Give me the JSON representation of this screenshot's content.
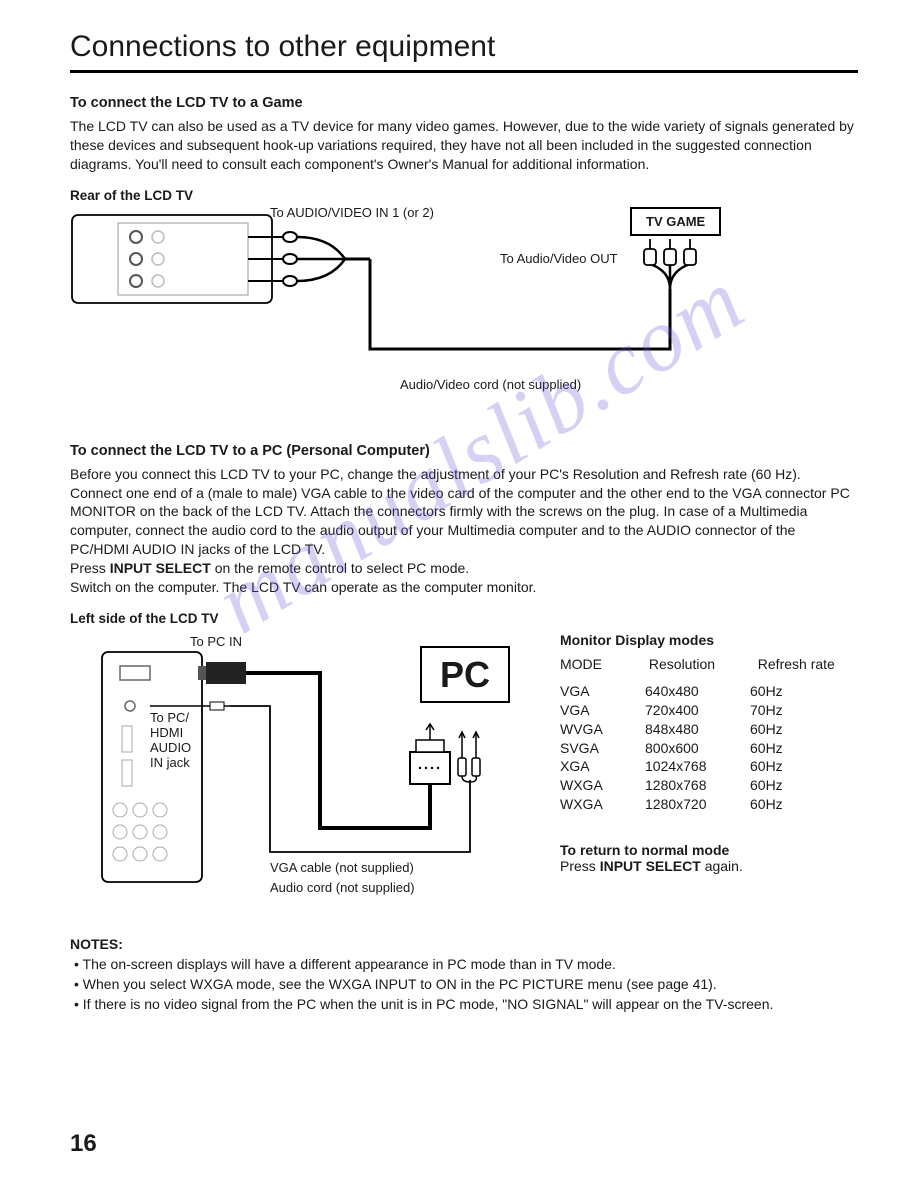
{
  "page": {
    "title": "Connections to other equipment",
    "number": "16",
    "watermark": "manualslib.com"
  },
  "game_section": {
    "heading": "To connect the LCD TV to a Game",
    "body": "The LCD TV can also be used as a TV device for many video games. However, due to the wide variety of signals generated by these devices and subsequent hook-up variations required, they have not all been included in the suggested connection diagrams. You'll need to consult each component's Owner's Manual for additional information.",
    "rear_label": "Rear of the LCD TV",
    "to_av_in": "To AUDIO/VIDEO IN 1 (or 2)",
    "tv_game_box": "TV GAME",
    "to_av_out": "To Audio/Video OUT",
    "cord_caption": "Audio/Video cord (not supplied)"
  },
  "pc_section": {
    "heading": "To connect the LCD TV to a PC (Personal Computer)",
    "body_pre": "Before you connect this LCD TV to your PC, change the adjustment of your PC's Resolution and Refresh rate (60 Hz).\nConnect one end of a (male to male) VGA cable to the video card of the computer and the other end to the VGA connector PC MONITOR on the back of the LCD TV. Attach the connectors firmly with the screws on the plug. In case of a Multimedia computer, connect the audio cord to the audio output of your Multimedia computer and to the AUDIO connector of the PC/HDMI AUDIO IN jacks of the LCD TV.\nPress ",
    "input_select_bold": "INPUT SELECT",
    "body_mid": " on the remote control to select PC mode.\nSwitch on the computer. The LCD TV can operate as the computer monitor.",
    "left_label": "Left side of the LCD TV",
    "to_pc_in": "To PC IN",
    "to_pc_hdmi": "To PC/\nHDMI\nAUDIO\nIN jack",
    "pc_box": "PC",
    "vga_caption": "VGA cable (not supplied)",
    "audio_caption": "Audio cord (not supplied)"
  },
  "modes": {
    "title": "Monitor Display modes",
    "columns": [
      "MODE",
      "Resolution",
      "Refresh rate"
    ],
    "rows": [
      [
        "VGA",
        "640x480",
        "60Hz"
      ],
      [
        "VGA",
        "720x400",
        "70Hz"
      ],
      [
        "WVGA",
        "848x480",
        "60Hz"
      ],
      [
        "SVGA",
        "800x600",
        "60Hz"
      ],
      [
        "XGA",
        "1024x768",
        "60Hz"
      ],
      [
        "WXGA",
        "1280x768",
        "60Hz"
      ],
      [
        "WXGA",
        "1280x720",
        "60Hz"
      ]
    ]
  },
  "return_mode": {
    "heading": "To return to normal mode",
    "text_pre": "Press ",
    "bold": "INPUT SELECT",
    "text_post": " again."
  },
  "notes": {
    "heading": "NOTES:",
    "items": [
      "The on-screen displays will have a different appearance in PC mode than in TV mode.",
      "When you select WXGA mode, see the WXGA INPUT to ON in the PC PICTURE menu (see page 41).",
      "If there is no video signal from the PC when the unit is in PC mode, \"NO SIGNAL\" will appear on the TV-screen."
    ]
  },
  "colors": {
    "text": "#1a1a1a",
    "rule": "#000000",
    "watermark": "rgba(100,90,220,0.28)"
  }
}
